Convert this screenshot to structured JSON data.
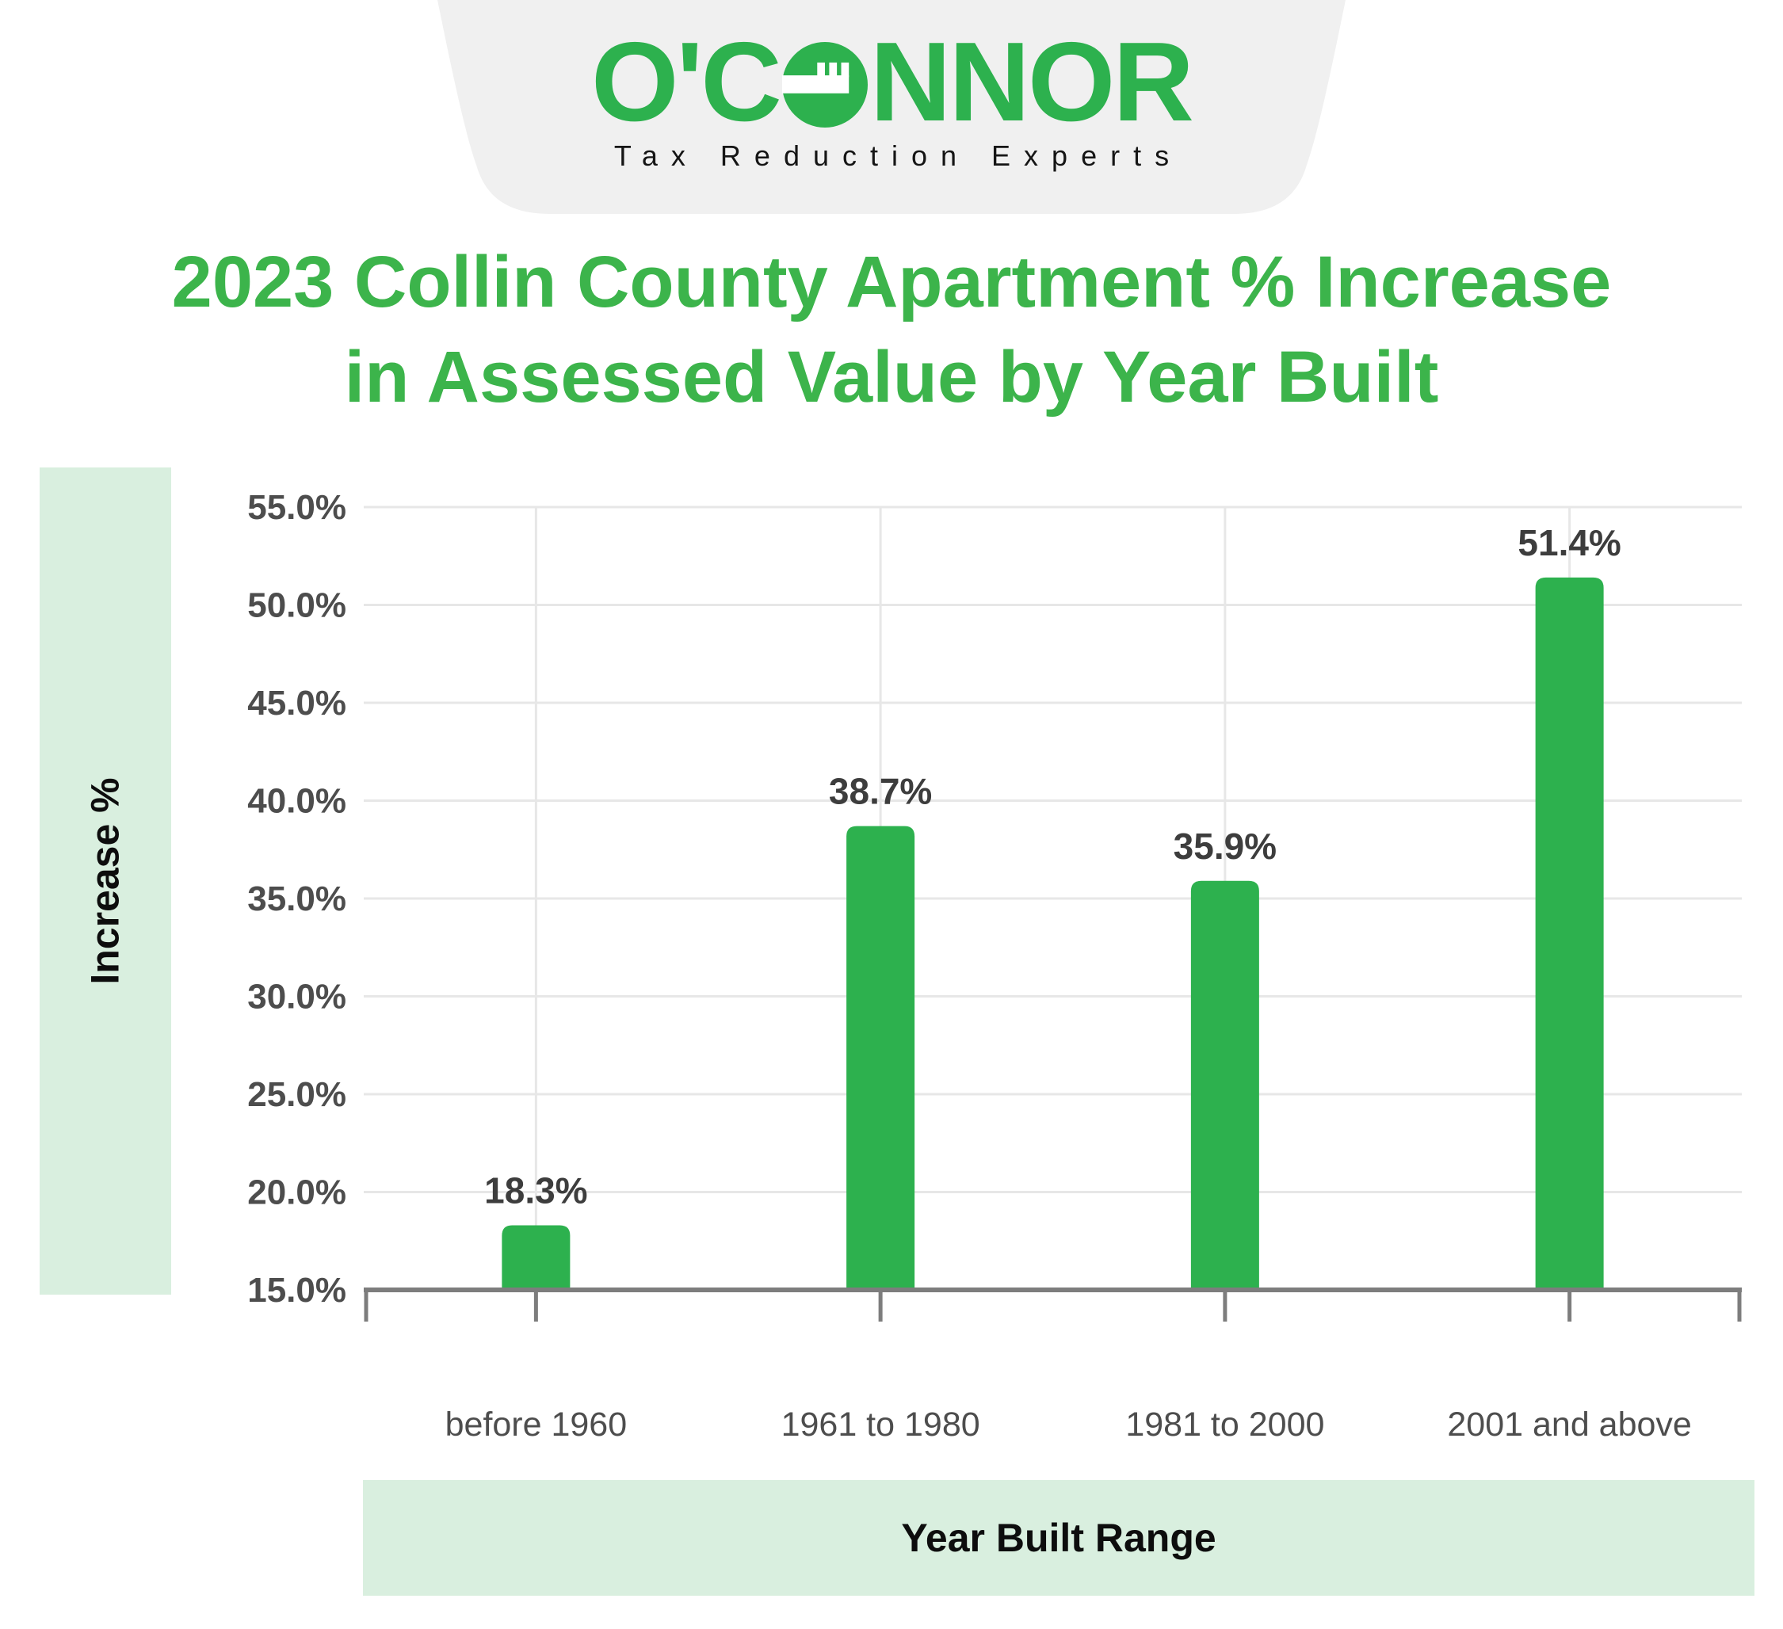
{
  "logo": {
    "name_prefix": "O'C",
    "name_suffix": "NNOR",
    "tagline": "Tax Reduction Experts"
  },
  "title": {
    "line1": "2023 Collin County Apartment % Increase",
    "line2": "in Assessed Value by Year Built"
  },
  "chart_data": {
    "type": "bar",
    "title": "2023 Collin County Apartment % Increase in Assessed Value by Year Built",
    "categories": [
      "before 1960",
      "1961 to 1980",
      "1981 to 2000",
      "2001 and above"
    ],
    "values": [
      18.3,
      38.7,
      35.9,
      51.4
    ],
    "data_labels": [
      "18.3%",
      "38.7%",
      "35.9%",
      "51.4%"
    ],
    "xlabel": "Year Built Range",
    "ylabel": "Increase %",
    "ylim": [
      15,
      55
    ],
    "ytick_step": 5,
    "ytick_labels": [
      "15.0%",
      "20.0%",
      "25.0%",
      "30.0%",
      "35.0%",
      "40.0%",
      "45.0%",
      "50.0%",
      "55.0%"
    ],
    "grid": true,
    "legend": false
  },
  "colors": {
    "brand_green": "#2db14e",
    "title_green": "#3cb44b",
    "pale_green": "#d9efdf",
    "badge_gray": "#f0f0f0",
    "axis": "#7d7d7d",
    "grid": "#e7e7e7",
    "tick_label": "#4d4d4d",
    "data_label": "#3d3d3d"
  }
}
